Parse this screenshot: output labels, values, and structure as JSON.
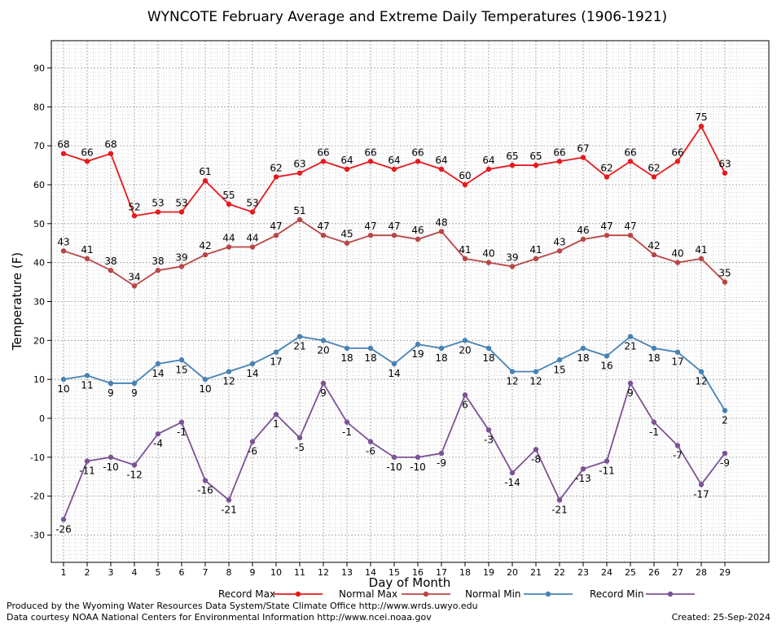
{
  "chart_data": {
    "type": "line",
    "title": "WYNCOTE February Average and Extreme Daily Temperatures (1906-1921)",
    "xlabel": "Day of Month",
    "ylabel": "Temperature (F)",
    "x": [
      1,
      2,
      3,
      4,
      5,
      6,
      7,
      8,
      9,
      10,
      11,
      12,
      13,
      14,
      15,
      16,
      17,
      18,
      19,
      20,
      21,
      22,
      23,
      24,
      25,
      26,
      27,
      28,
      29
    ],
    "xlim": [
      1,
      29
    ],
    "ylim": [
      -37,
      97
    ],
    "yticks": [
      -30,
      -20,
      -10,
      0,
      10,
      20,
      30,
      40,
      50,
      60,
      70,
      80,
      90
    ],
    "grid": true,
    "legend_position": "bottom",
    "series": [
      {
        "name": "Record Max",
        "color": "#e8191d",
        "values": [
          68,
          66,
          68,
          52,
          53,
          53,
          61,
          55,
          53,
          62,
          63,
          66,
          64,
          66,
          64,
          66,
          64,
          60,
          64,
          65,
          65,
          66,
          67,
          62,
          66,
          62,
          66,
          75,
          63
        ]
      },
      {
        "name": "Normal Max",
        "color": "#b94646",
        "values": [
          43,
          41,
          38,
          34,
          38,
          39,
          42,
          44,
          44,
          47,
          51,
          47,
          45,
          47,
          47,
          46,
          48,
          41,
          40,
          39,
          41,
          43,
          46,
          47,
          47,
          42,
          40,
          41,
          35
        ]
      },
      {
        "name": "Normal Min",
        "color": "#4682b4",
        "values": [
          10,
          11,
          9,
          9,
          14,
          15,
          10,
          12,
          14,
          17,
          21,
          20,
          18,
          18,
          14,
          19,
          18,
          20,
          18,
          12,
          12,
          15,
          18,
          16,
          21,
          18,
          17,
          12,
          2
        ]
      },
      {
        "name": "Record Min",
        "color": "#7b5296",
        "values": [
          -26,
          -11,
          -10,
          -12,
          -4,
          -1,
          -16,
          -21,
          -6,
          1,
          -5,
          9,
          -1,
          -6,
          -10,
          -10,
          -9,
          6,
          -3,
          -14,
          -8,
          -21,
          -13,
          -11,
          9,
          -1,
          -7,
          -17,
          -9
        ]
      }
    ]
  },
  "footer": {
    "produced_by": "Produced by the Wyoming Water Resources Data System/State Climate Office http://www.wrds.uwyo.edu",
    "data_courtesy": "Data courtesy NOAA National Centers for Environmental Information http://www.ncei.noaa.gov",
    "created": "Created: 25-Sep-2024"
  }
}
